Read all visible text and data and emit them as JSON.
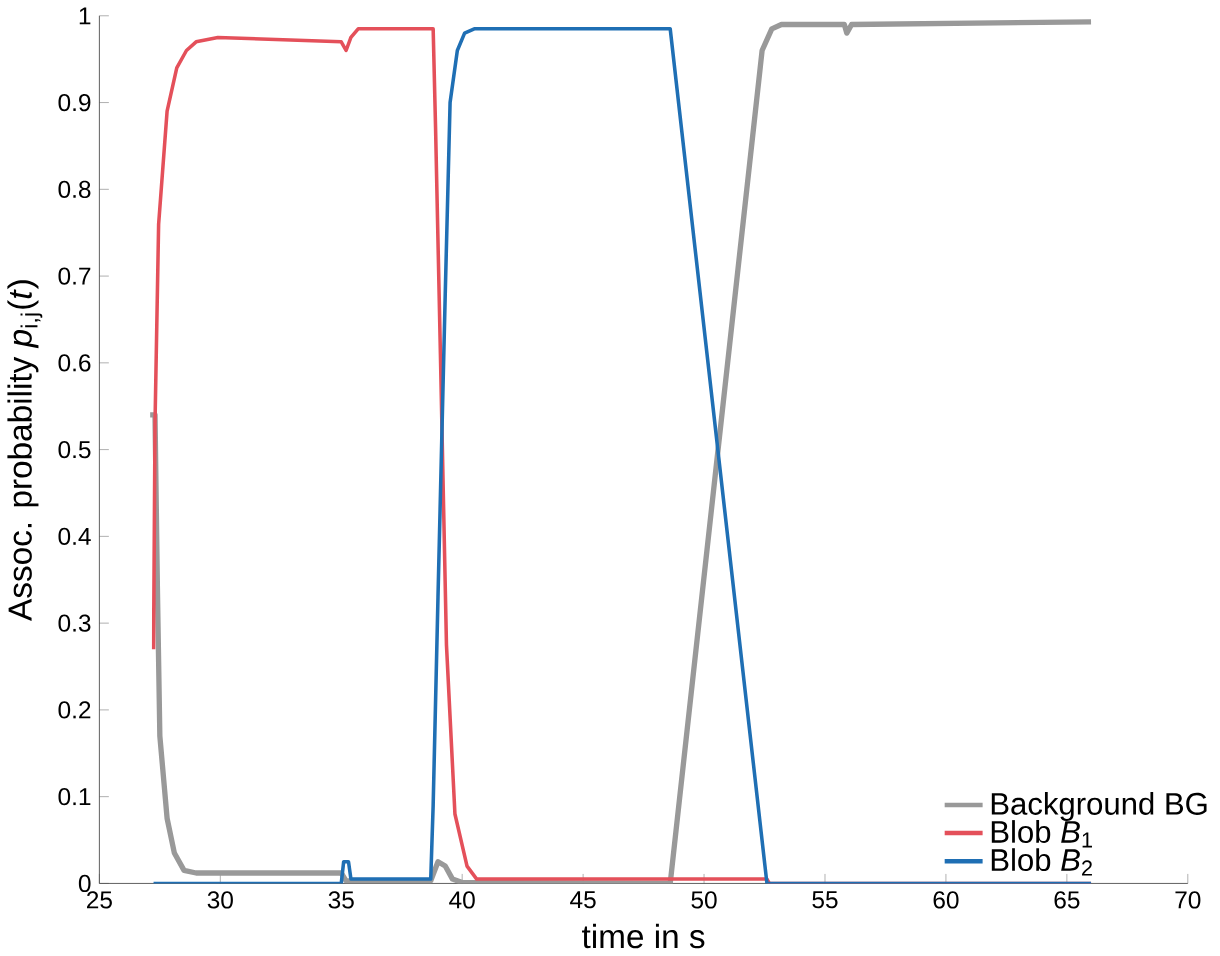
{
  "chart_data": {
    "type": "line",
    "xlabel": "time in s",
    "ylabel": "Assoc. probability *p*$_{i,j}$(*t*)",
    "xlim": [
      25,
      70
    ],
    "ylim": [
      0,
      1
    ],
    "xticks": [
      25,
      30,
      35,
      40,
      45,
      50,
      55,
      60,
      65,
      70
    ],
    "yticks": [
      0,
      0.1,
      0.2,
      0.3,
      0.4,
      0.5,
      0.6,
      0.7,
      0.8,
      0.9,
      1
    ],
    "legend": "bottom right",
    "grid": false,
    "marker": "none",
    "line_style": "solid",
    "series": [
      {
        "name": "Background BG",
        "color": "#999999",
        "x": [
          27.1,
          27.3,
          27.4,
          27.5,
          27.8,
          28.1,
          28.5,
          29,
          35,
          35.2,
          38.7,
          39,
          39.3,
          39.6,
          40,
          48.6,
          52.4,
          52.8,
          53.2,
          55.8,
          55.9,
          56.1,
          66
        ],
        "values": [
          0.54,
          0.54,
          0.34,
          0.17,
          0.075,
          0.035,
          0.015,
          0.012,
          0.012,
          0.003,
          0.003,
          0.025,
          0.02,
          0.005,
          0.001,
          0,
          0.96,
          0.985,
          0.99,
          0.99,
          0.98,
          0.99,
          0.993
        ]
      },
      {
        "name": "Blob *B*$_{1}$",
        "color": "#e4505a",
        "x": [
          27.24,
          27.3,
          27.45,
          27.8,
          28.2,
          28.6,
          29,
          29.9,
          35,
          35.2,
          35.4,
          35.7,
          38.8,
          38.9,
          39.1,
          39.35,
          39.7,
          40.2,
          40.6,
          52.6,
          52.7,
          66
        ],
        "values": [
          0.27,
          0.53,
          0.76,
          0.89,
          0.94,
          0.96,
          0.97,
          0.975,
          0.97,
          0.96,
          0.975,
          0.985,
          0.985,
          0.87,
          0.61,
          0.275,
          0.08,
          0.02,
          0.005,
          0.005,
          0,
          0
        ]
      },
      {
        "name": "Blob *B*$_{2}$",
        "color": "#1f6fb4",
        "x": [
          27.24,
          35,
          35.1,
          35.3,
          35.4,
          38.7,
          38.8,
          39,
          39.3,
          39.5,
          39.8,
          40.1,
          40.5,
          48.6,
          52.6,
          66
        ],
        "values": [
          0,
          0,
          0.025,
          0.025,
          0.005,
          0.005,
          0.09,
          0.33,
          0.68,
          0.9,
          0.96,
          0.98,
          0.985,
          0.985,
          0,
          0
        ]
      }
    ]
  }
}
